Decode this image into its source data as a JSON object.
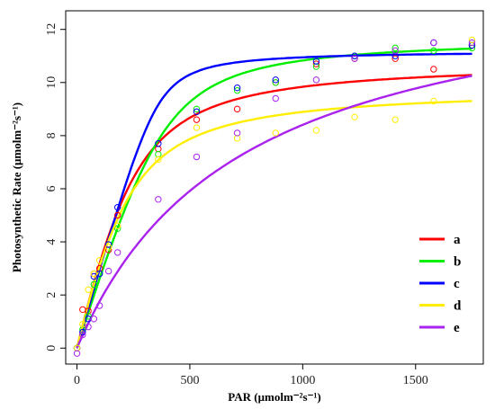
{
  "chart_data": {
    "type": "scatter",
    "title": "",
    "xlabel": "PAR (μmolm⁻²s⁻¹)",
    "ylabel": "Photosynthetic Rate (μmolm⁻²s⁻¹)",
    "xlim": [
      -50,
      1800
    ],
    "ylim": [
      -0.6,
      12.7
    ],
    "xticks": [
      0,
      500,
      1000,
      1500
    ],
    "yticks": [
      0,
      2,
      4,
      6,
      8,
      10,
      12
    ],
    "grid": false,
    "legend_position": "bottom-right",
    "x": [
      0,
      25,
      50,
      75,
      100,
      140,
      180,
      360,
      530,
      710,
      880,
      1060,
      1230,
      1410,
      1580,
      1750
    ],
    "series": [
      {
        "name": "a",
        "color": "#ff0000",
        "values": [
          0,
          1.45,
          1.4,
          2.8,
          3.0,
          3.7,
          5.0,
          7.5,
          8.6,
          9.0,
          10.0,
          10.7,
          10.9,
          10.9,
          10.5,
          11.4
        ],
        "fit": {
          "pmax": 10.8,
          "alpha": 0.035,
          "theta": 0.75
        }
      },
      {
        "name": "b",
        "color": "#00ee00",
        "values": [
          0,
          0.7,
          1.2,
          2.4,
          2.8,
          3.9,
          4.5,
          7.3,
          9.0,
          9.7,
          10.0,
          10.6,
          11.0,
          11.3,
          11.2,
          11.3
        ],
        "fit": {
          "pmax": 11.7,
          "alpha": 0.027,
          "theta": 0.88
        }
      },
      {
        "name": "c",
        "color": "#0000ff",
        "values": [
          0,
          0.6,
          1.1,
          2.7,
          2.8,
          3.9,
          5.3,
          7.7,
          8.9,
          9.8,
          10.1,
          10.8,
          11.0,
          11.0,
          11.5,
          11.4
        ],
        "fit": {
          "pmax": 11.2,
          "alpha": 0.03,
          "theta": 0.96
        }
      },
      {
        "name": "d",
        "color": "#ffee00",
        "values": [
          0,
          0.9,
          2.2,
          2.8,
          3.3,
          3.8,
          4.6,
          7.1,
          8.3,
          7.9,
          8.1,
          8.2,
          8.7,
          8.6,
          9.3,
          11.6
        ],
        "fit": {
          "pmax": 9.8,
          "alpha": 0.035,
          "theta": 0.7
        }
      },
      {
        "name": "e",
        "color": "#aa22ee",
        "values": [
          -0.2,
          0.5,
          0.8,
          1.1,
          1.6,
          2.9,
          3.6,
          5.6,
          7.2,
          8.1,
          9.4,
          10.1,
          10.9,
          11.2,
          11.5,
          11.5
        ],
        "fit": {
          "pmax": 14.5,
          "alpha": 0.02,
          "theta": 0
        }
      }
    ]
  }
}
